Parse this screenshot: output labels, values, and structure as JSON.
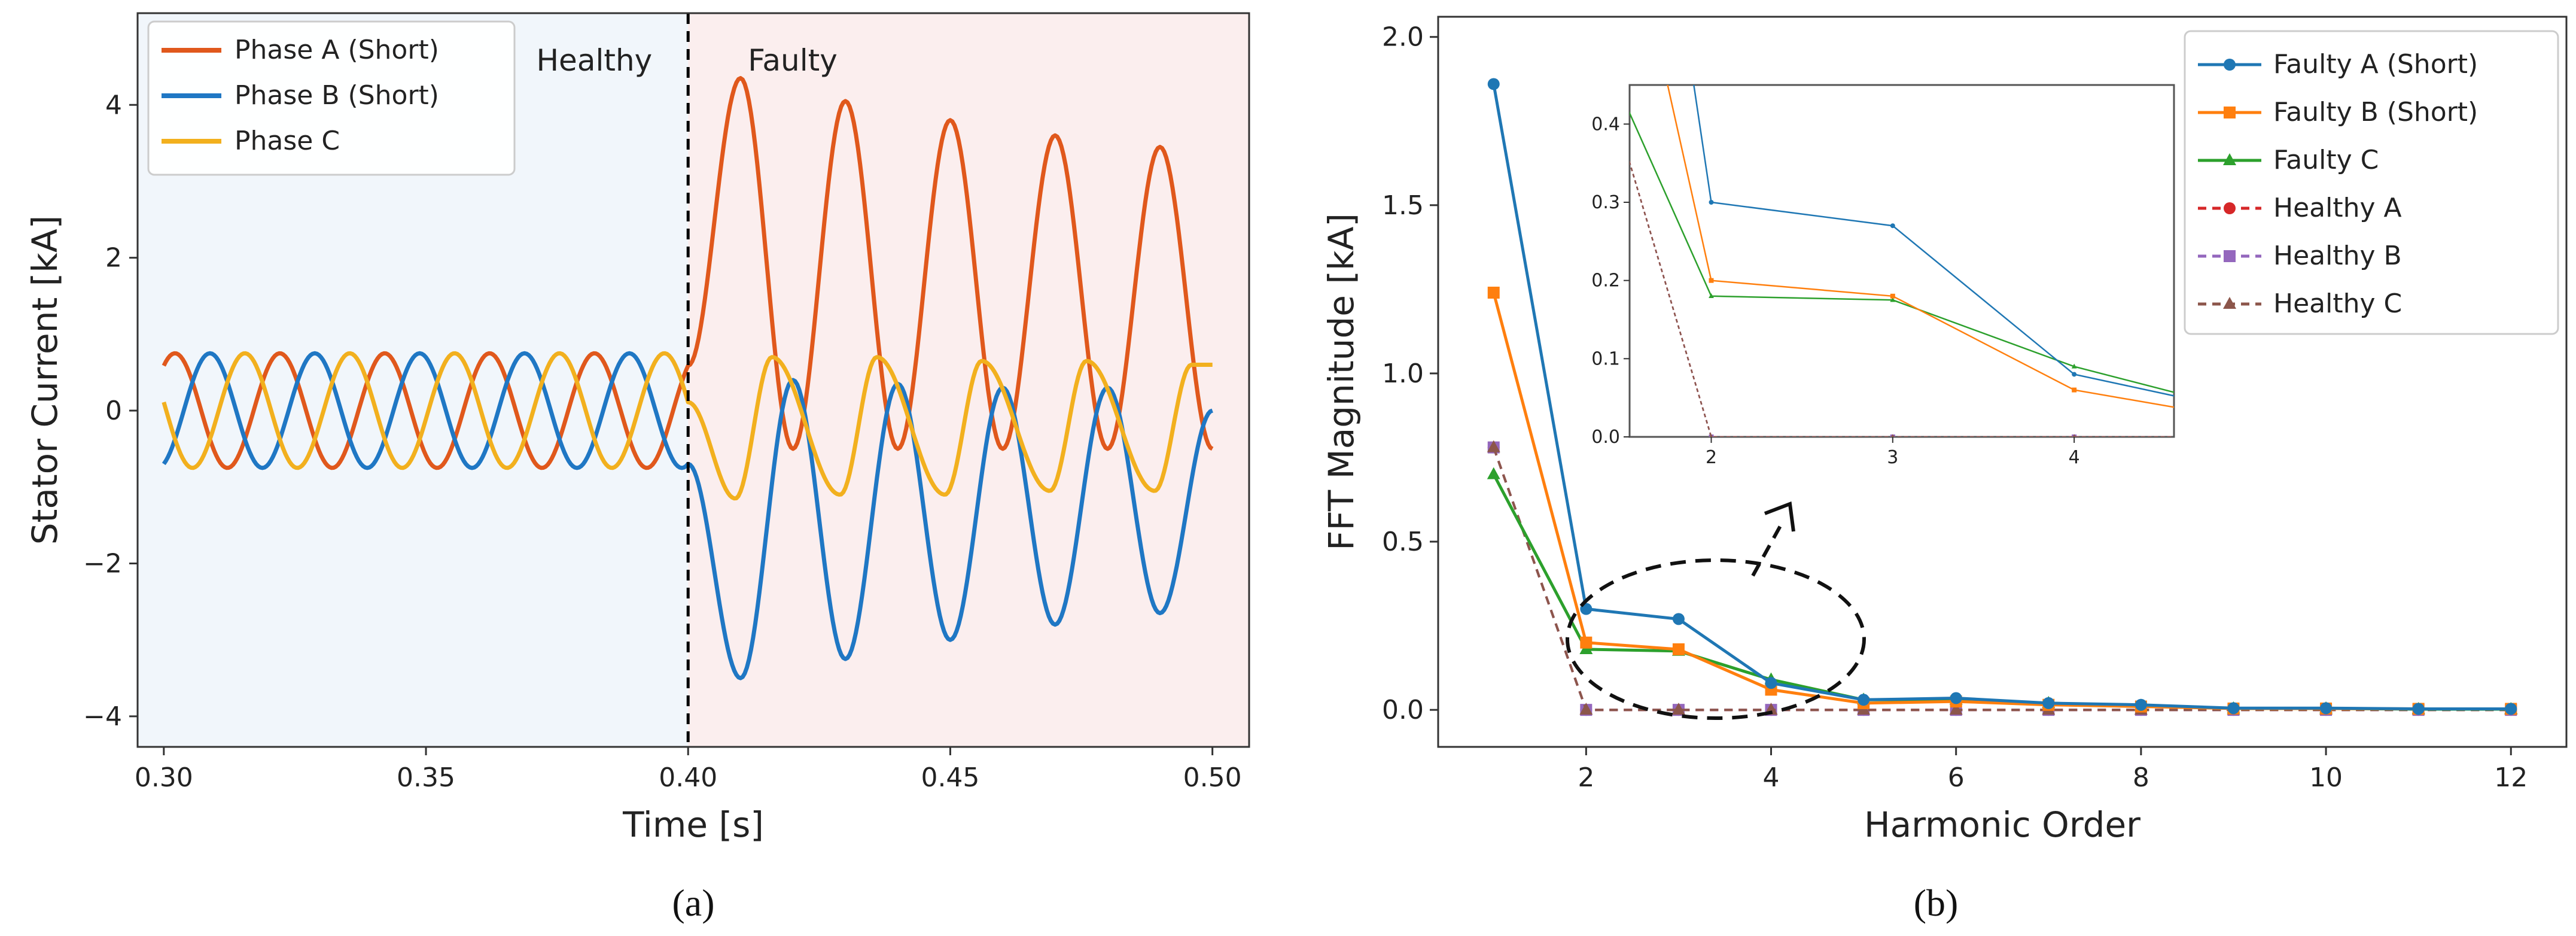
{
  "chart_data": [
    {
      "type": "line",
      "panel_label": "(a)",
      "xlabel": "Time [s]",
      "ylabel": "Stator  Current  [kA]",
      "xlim": [
        0.295,
        0.507
      ],
      "ylim": [
        -4.4,
        5.2
      ],
      "xticks": [
        0.3,
        0.35,
        0.4,
        0.45,
        0.5
      ],
      "xtick_labels": [
        "0.30",
        "0.35",
        "0.40",
        "0.45",
        "0.50"
      ],
      "yticks": [
        -4,
        -2,
        0,
        2,
        4
      ],
      "ytick_labels": [
        "−4",
        "−2",
        "0",
        "2",
        "4"
      ],
      "fault_time": 0.4,
      "regions": [
        {
          "label": "Healthy",
          "from": 0.295,
          "to": 0.4,
          "color": "#f1f6fb"
        },
        {
          "label": "Faulty",
          "from": 0.4,
          "to": 0.507,
          "color": "#fbeeee"
        }
      ],
      "frequency_hz": 50,
      "healthy_amplitude": 0.75,
      "series": [
        {
          "name": "Phase A (Short)",
          "color": "#e0581c",
          "fault_peaks": [
            {
              "t": 0.41,
              "v": 4.35
            },
            {
              "t": 0.43,
              "v": 4.05
            },
            {
              "t": 0.45,
              "v": 3.8
            },
            {
              "t": 0.47,
              "v": 3.6
            },
            {
              "t": 0.49,
              "v": 3.45
            }
          ],
          "fault_troughs": [
            {
              "t": 0.42,
              "v": -0.5
            },
            {
              "t": 0.44,
              "v": -0.5
            },
            {
              "t": 0.46,
              "v": -0.5
            },
            {
              "t": 0.48,
              "v": -0.5
            },
            {
              "t": 0.5,
              "v": -0.5
            }
          ]
        },
        {
          "name": "Phase B (Short)",
          "color": "#1f77c4",
          "fault_peaks": [
            {
              "t": 0.42,
              "v": 0.4
            },
            {
              "t": 0.44,
              "v": 0.35
            },
            {
              "t": 0.46,
              "v": 0.3
            },
            {
              "t": 0.48,
              "v": 0.3
            },
            {
              "t": 0.5,
              "v": 0.0
            }
          ],
          "fault_troughs": [
            {
              "t": 0.41,
              "v": -3.5
            },
            {
              "t": 0.43,
              "v": -3.25
            },
            {
              "t": 0.45,
              "v": -3.0
            },
            {
              "t": 0.47,
              "v": -2.8
            },
            {
              "t": 0.49,
              "v": -2.65
            }
          ]
        },
        {
          "name": "Phase C",
          "color": "#f2b01e",
          "fault_peaks": [
            {
              "t": 0.416,
              "v": 0.7
            },
            {
              "t": 0.436,
              "v": 0.7
            },
            {
              "t": 0.456,
              "v": 0.65
            },
            {
              "t": 0.476,
              "v": 0.65
            },
            {
              "t": 0.496,
              "v": 0.6
            }
          ],
          "fault_troughs": [
            {
              "t": 0.409,
              "v": -1.15
            },
            {
              "t": 0.429,
              "v": -1.1
            },
            {
              "t": 0.449,
              "v": -1.1
            },
            {
              "t": 0.469,
              "v": -1.05
            },
            {
              "t": 0.489,
              "v": -1.05
            }
          ]
        }
      ],
      "legend_position": "top-left"
    },
    {
      "type": "line",
      "panel_label": "(b)",
      "xlabel": "Harmonic Order",
      "ylabel": "FFT  Magnitude [kA]",
      "xlim": [
        0.4,
        12.6
      ],
      "ylim": [
        -0.11,
        2.06
      ],
      "xticks": [
        2,
        4,
        6,
        8,
        10,
        12
      ],
      "yticks": [
        0.0,
        0.5,
        1.0,
        1.5,
        2.0
      ],
      "ytick_labels": [
        "0.0",
        "0.5",
        "1.0",
        "1.5",
        "2.0"
      ],
      "x": [
        1,
        2,
        3,
        4,
        5,
        6,
        7,
        8,
        9,
        10,
        11,
        12
      ],
      "series": [
        {
          "name": "Faulty A (Short)",
          "color": "#1f77b4",
          "marker": "circle",
          "dashed": false,
          "values": [
            1.86,
            0.3,
            0.27,
            0.08,
            0.03,
            0.035,
            0.02,
            0.015,
            0.005,
            0.005,
            0.003,
            0.003
          ]
        },
        {
          "name": "Faulty B (Short)",
          "color": "#ff7f0e",
          "marker": "square",
          "dashed": false,
          "values": [
            1.24,
            0.2,
            0.18,
            0.06,
            0.02,
            0.025,
            0.015,
            0.01,
            0.004,
            0.004,
            0.003,
            0.003
          ]
        },
        {
          "name": "Faulty C",
          "color": "#2ca02c",
          "marker": "triangle",
          "dashed": false,
          "values": [
            0.7,
            0.18,
            0.175,
            0.09,
            0.03,
            0.03,
            0.02,
            0.012,
            0.004,
            0.004,
            0.002,
            0.002
          ]
        },
        {
          "name": "Healthy A",
          "color": "#d62728",
          "marker": "circle",
          "dashed": true,
          "values": [
            0.78,
            0.0,
            0.0,
            0.0,
            0.0,
            0.0,
            0.0,
            0.0,
            0.0,
            0.0,
            0.0,
            0.0
          ]
        },
        {
          "name": "Healthy B",
          "color": "#9467bd",
          "marker": "square",
          "dashed": true,
          "values": [
            0.78,
            0.0,
            0.0,
            0.0,
            0.0,
            0.0,
            0.0,
            0.0,
            0.0,
            0.0,
            0.0,
            0.0
          ]
        },
        {
          "name": "Healthy C",
          "color": "#8c564b",
          "marker": "triangle",
          "dashed": true,
          "values": [
            0.78,
            0.0,
            0.0,
            0.0,
            0.0,
            0.0,
            0.0,
            0.0,
            0.0,
            0.0,
            0.0,
            0.0
          ]
        }
      ],
      "legend_position": "top-right",
      "inset": {
        "xlim": [
          1.55,
          4.55
        ],
        "ylim": [
          0.0,
          0.45
        ],
        "xticks": [
          2,
          3,
          4
        ],
        "yticks": [
          0.0,
          0.1,
          0.2,
          0.3,
          0.4
        ],
        "ytick_labels": [
          "0.0",
          "0.1",
          "0.2",
          "0.3",
          "0.4"
        ],
        "zoom_of": [
          2,
          4
        ]
      }
    }
  ]
}
